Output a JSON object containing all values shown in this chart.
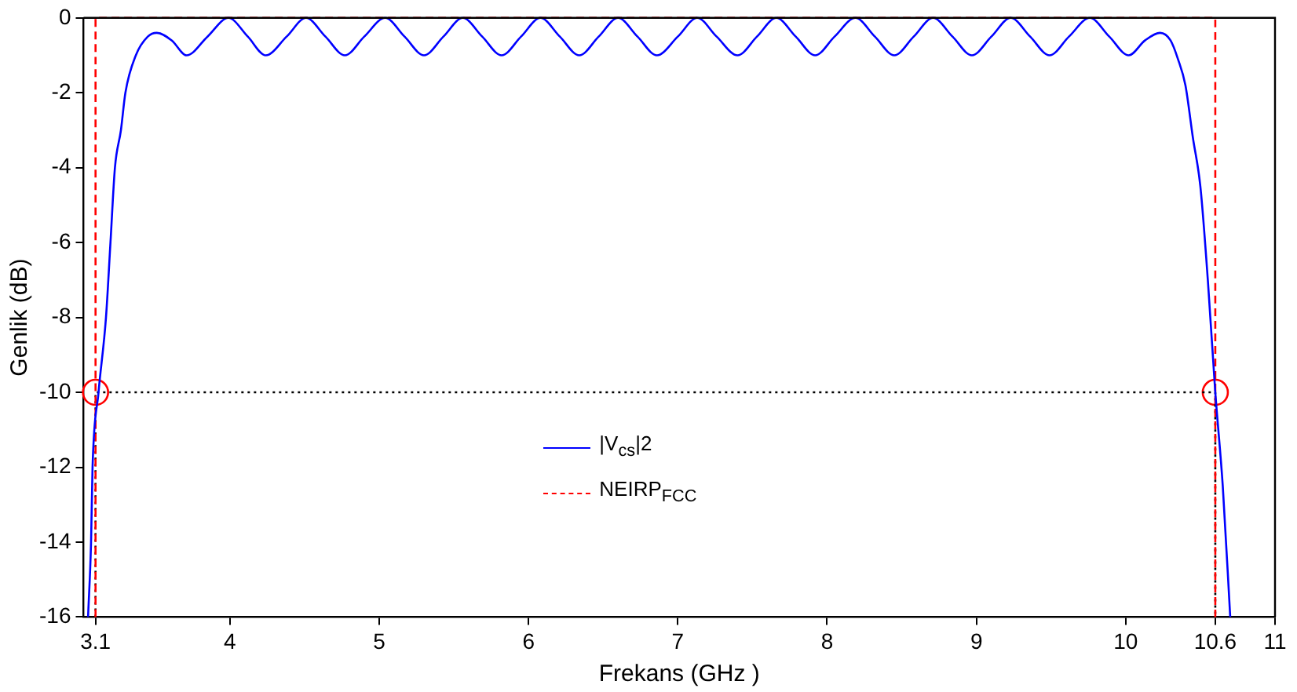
{
  "chart_data": {
    "type": "line",
    "xlabel": "Frekans (GHz )",
    "ylabel": "Genlik (dB)",
    "xlim": [
      3.02,
      11
    ],
    "xticks": [
      3.1,
      4,
      5,
      6,
      7,
      8,
      9,
      10,
      10.6,
      11
    ],
    "ylim": [
      -16,
      0
    ],
    "yticks": [
      -16,
      -14,
      -12,
      -10,
      -8,
      -6,
      -4,
      -2,
      0
    ],
    "grid": false,
    "legend": "bottom",
    "series": [
      {
        "name": "|V$_{cs}$|2",
        "color": "#0000ff",
        "line_style": "solid",
        "marker": "none",
        "x": [
          3.05,
          3.07,
          3.08,
          3.12,
          3.17,
          3.2,
          3.23,
          3.27,
          3.3,
          3.37,
          3.45,
          3.51,
          3.61,
          3.71,
          3.85,
          3.99,
          4.12,
          4.24,
          4.38,
          4.51,
          4.64,
          4.77,
          4.9,
          5.04,
          5.17,
          5.3,
          5.43,
          5.56,
          5.69,
          5.82,
          5.95,
          6.08,
          6.21,
          6.34,
          6.47,
          6.6,
          6.73,
          6.86,
          7.0,
          7.13,
          7.26,
          7.4,
          7.53,
          7.66,
          7.79,
          7.92,
          8.05,
          8.19,
          8.32,
          8.45,
          8.58,
          8.71,
          8.84,
          8.97,
          9.1,
          9.23,
          9.36,
          9.49,
          9.62,
          9.76,
          9.89,
          10.02,
          10.13,
          10.23,
          10.3,
          10.35,
          10.4,
          10.45,
          10.5,
          10.55,
          10.6,
          10.65,
          10.7
        ],
        "values": [
          -16,
          -14,
          -12,
          -10,
          -8,
          -6,
          -4,
          -3,
          -2,
          -1,
          -0.5,
          -0.4,
          -0.6,
          -1,
          -0.5,
          0,
          -0.5,
          -1,
          -0.5,
          0,
          -0.5,
          -1,
          -0.5,
          0,
          -0.5,
          -1,
          -0.5,
          0,
          -0.5,
          -1,
          -0.5,
          0,
          -0.5,
          -1,
          -0.5,
          0,
          -0.5,
          -1,
          -0.5,
          0,
          -0.5,
          -1,
          -0.5,
          0,
          -0.5,
          -1,
          -0.5,
          0,
          -0.5,
          -1,
          -0.5,
          0,
          -0.5,
          -1,
          -0.5,
          0,
          -0.5,
          -1,
          -0.5,
          0,
          -0.5,
          -1,
          -0.6,
          -0.4,
          -0.6,
          -1.1,
          -1.8,
          -3.2,
          -4.5,
          -7,
          -10,
          -12.5,
          -16
        ]
      },
      {
        "name": "NEIRP$_{FCC}$",
        "color": "#ff0000",
        "line_style": "dashed",
        "marker": "none",
        "x": [
          3.1,
          3.1,
          10.6,
          10.6
        ],
        "values": [
          -16,
          0,
          0,
          -16
        ]
      },
      {
        "color": "#000000",
        "line_style": "dotted",
        "marker": "none",
        "x": [
          3.1,
          3.1,
          10.6,
          10.6
        ],
        "values": [
          -16,
          -10,
          -10,
          -16
        ]
      },
      {
        "type": "scatter",
        "color": "#ff0000",
        "marker": "circle",
        "x": [
          3.1,
          10.6
        ],
        "values": [
          -10,
          -10
        ]
      }
    ]
  }
}
